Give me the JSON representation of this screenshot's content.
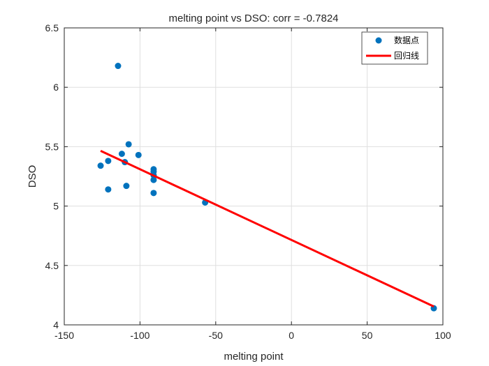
{
  "chart_data": {
    "type": "scatter",
    "title": "melting point vs DSO: corr = -0.7824",
    "xlabel": "melting point",
    "ylabel": "DSO",
    "xlim": [
      -150,
      100
    ],
    "ylim": [
      4,
      6.5
    ],
    "xticks": [
      -150,
      -100,
      -50,
      0,
      50,
      100
    ],
    "xtick_labels": [
      "-150",
      "-100",
      "-50",
      "0",
      "50",
      "100"
    ],
    "yticks": [
      4,
      4.5,
      5,
      5.5,
      6,
      6.5
    ],
    "ytick_labels": [
      "4",
      "4.5",
      "5",
      "5.5",
      "6",
      "6.5"
    ],
    "grid": true,
    "legend_position": "top-right",
    "series": [
      {
        "name": "数据点",
        "kind": "scatter",
        "color": "#0072BD",
        "x": [
          -114.5,
          -107.5,
          -112,
          -101,
          -110,
          -121,
          -126,
          -91,
          -91,
          -91,
          -91,
          -109,
          -121,
          -91,
          -57,
          94
        ],
        "y": [
          6.18,
          5.52,
          5.44,
          5.43,
          5.37,
          5.38,
          5.34,
          5.31,
          5.29,
          5.26,
          5.22,
          5.17,
          5.14,
          5.11,
          5.03,
          4.14
        ]
      },
      {
        "name": "回归线",
        "kind": "line",
        "color": "#FF0000",
        "x": [
          -126,
          94
        ],
        "y": [
          5.465,
          4.155
        ]
      }
    ]
  }
}
